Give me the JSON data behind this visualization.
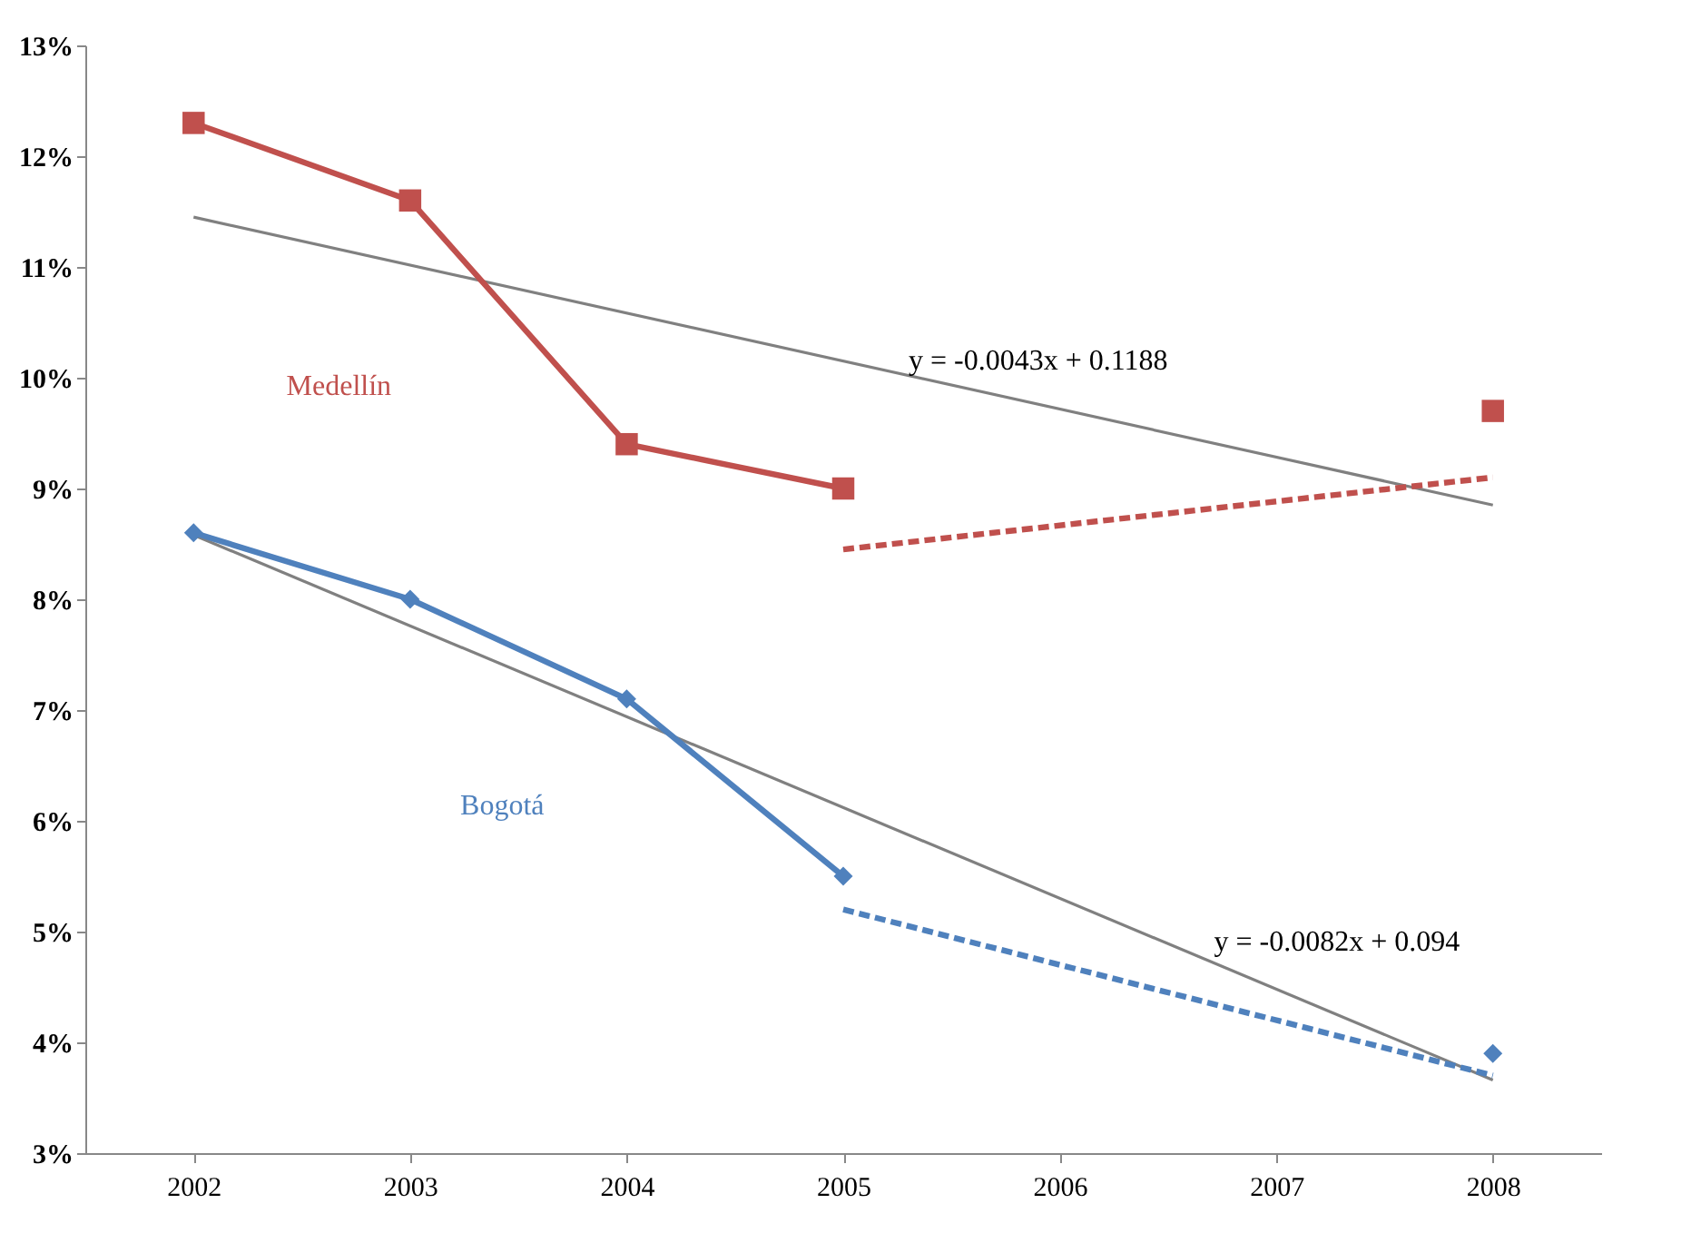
{
  "chart_data": {
    "type": "line",
    "xlim": [
      2001.5,
      2008.5
    ],
    "xticks": [
      2002,
      2003,
      2004,
      2005,
      2006,
      2007,
      2008
    ],
    "ylim": [
      3,
      13
    ],
    "yticks": [
      {
        "value": 3,
        "label": "3%"
      },
      {
        "value": 4,
        "label": "4%"
      },
      {
        "value": 5,
        "label": "5%"
      },
      {
        "value": 6,
        "label": "6%"
      },
      {
        "value": 7,
        "label": "7%"
      },
      {
        "value": 8,
        "label": "8%"
      },
      {
        "value": 9,
        "label": "9%"
      },
      {
        "value": 10,
        "label": "10%"
      },
      {
        "value": 11,
        "label": "11%"
      },
      {
        "value": 12,
        "label": "12%"
      },
      {
        "value": 13,
        "label": "13%"
      }
    ],
    "grid": false,
    "series": [
      {
        "name": "y = -0.0043x + 0.1188",
        "color": "#808080",
        "marker": "none",
        "line_style": "solid",
        "x": [
          2002,
          2008
        ],
        "values": [
          11.45,
          8.85
        ]
      },
      {
        "name": "y = -0.0082x + 0.094",
        "color": "#808080",
        "marker": "none",
        "line_style": "solid",
        "x": [
          2002,
          2008
        ],
        "values": [
          8.58,
          3.66
        ]
      },
      {
        "name": "Medellín",
        "color": "#c0504d",
        "marker": "square",
        "line_style": "solid",
        "x": [
          2002,
          2003,
          2004,
          2005,
          2006,
          2007,
          2008
        ],
        "values": [
          12.3,
          11.6,
          9.4,
          9.0,
          null,
          null,
          9.7
        ]
      },
      {
        "name": "Bogotá",
        "color": "#4f81bd",
        "marker": "diamond",
        "line_style": "solid",
        "x": [
          2002,
          2003,
          2004,
          2005,
          2006,
          2007,
          2008
        ],
        "values": [
          8.6,
          8.0,
          7.1,
          5.5,
          null,
          null,
          3.9
        ]
      },
      {
        "color": "#c0504d",
        "marker": "none",
        "line_style": "dashed",
        "x": [
          2005,
          2008
        ],
        "values": [
          8.45,
          9.1
        ]
      },
      {
        "color": "#4f81bd",
        "marker": "none",
        "line_style": "dashed",
        "x": [
          2005,
          2008
        ],
        "values": [
          5.2,
          3.7
        ]
      }
    ]
  }
}
